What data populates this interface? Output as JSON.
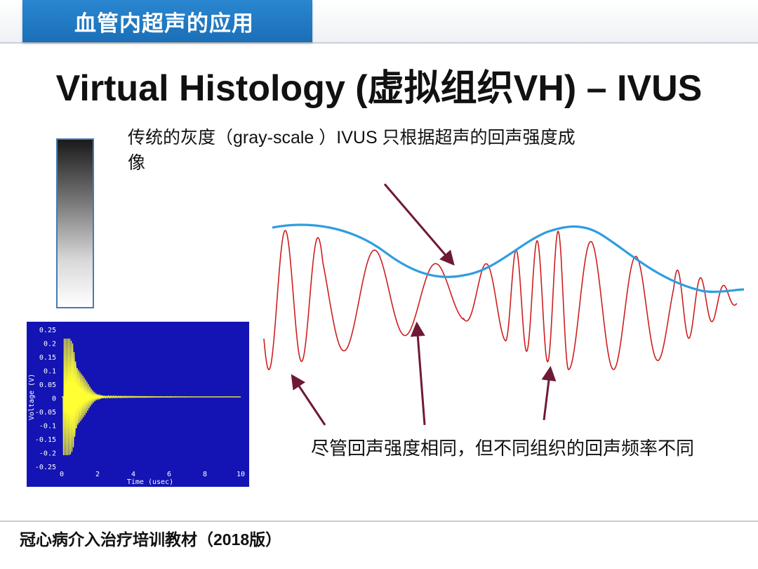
{
  "header": {
    "section_title": "血管内超声的应用"
  },
  "slide": {
    "title": "Virtual Histology (虚拟组织VH) – IVUS"
  },
  "annotations": {
    "gray_scale": "传统的灰度（gray-scale ）IVUS 只根据超声的回声强度成像",
    "same_intensity": "尽管回声强度相同，但不同组织的回声频率不同"
  },
  "oscilloscope": {
    "ylabel": "Voltage (V)",
    "xlabel": "Time (usec)",
    "y_ticks": [
      "0.25",
      "0.2",
      "0.15",
      "0.1",
      "0.05",
      "0",
      "-0.05",
      "-0.1",
      "-0.15",
      "-0.2",
      "-0.25"
    ],
    "x_ticks": [
      "0",
      "2",
      "4",
      "6",
      "8",
      "10"
    ],
    "colors": {
      "background": "#1414b4",
      "signal": "#ffff33",
      "text": "#ffffff"
    }
  },
  "waveform": {
    "colors": {
      "signal": "#cc1f1f",
      "envelope": "#2f9de0",
      "arrow": "#6e1a35"
    }
  },
  "footer": {
    "text": "冠心病介入治疗培训教材（2018版）"
  }
}
